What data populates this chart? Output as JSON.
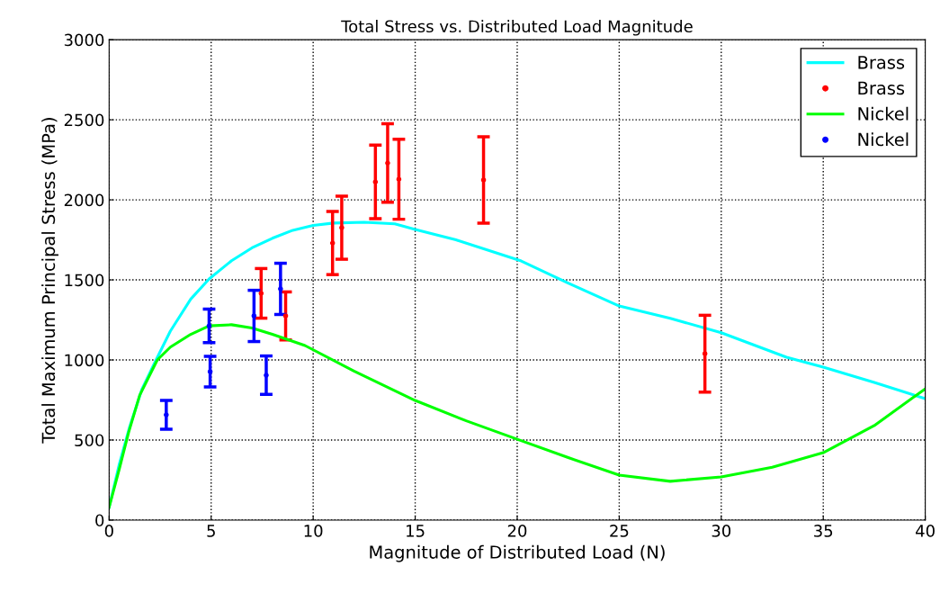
{
  "chart_data": {
    "type": "line",
    "title": "Total Stress vs. Distributed Load Magnitude",
    "xlabel": "Magnitude of Distributed Load (N)",
    "ylabel": "Total Maximum Principal Stress (MPa)",
    "xlim": [
      0,
      40
    ],
    "ylim": [
      0,
      3000
    ],
    "xticks": [
      0,
      5,
      10,
      15,
      20,
      25,
      30,
      35,
      40
    ],
    "yticks": [
      0,
      500,
      1000,
      1500,
      2000,
      2500,
      3000
    ],
    "grid": true,
    "legend": "top right",
    "series": [
      {
        "name": "Brass",
        "color": "#00ffff",
        "marker": "none",
        "x": [
          0,
          0.5,
          1,
          1.6,
          2.3,
          3,
          4,
          4.9,
          6,
          7,
          8,
          9,
          10,
          11,
          12.5,
          14,
          15,
          17,
          20.2,
          22.5,
          25,
          27.5,
          30,
          33.2,
          35,
          37.5,
          40
        ],
        "values": [
          80,
          350,
          580,
          815,
          1000,
          1180,
          1380,
          1506,
          1620,
          1700,
          1760,
          1810,
          1840,
          1855,
          1860,
          1850,
          1815,
          1750,
          1618,
          1480,
          1337,
          1260,
          1170,
          1017,
          955,
          860,
          758
        ]
      },
      {
        "name": "Brass",
        "type": "scatter",
        "color": "#ff0000",
        "marker": "circle",
        "x": [
          7.45,
          8.65,
          10.95,
          11.4,
          13.05,
          13.65,
          14.2,
          18.35,
          29.2
        ],
        "values": [
          1416,
          1275,
          1730,
          1826,
          2112,
          2230,
          2129,
          2124,
          1039
        ],
        "errors": [
          155,
          150,
          197,
          197,
          230,
          245,
          250,
          270,
          240
        ]
      },
      {
        "name": "Nickel",
        "color": "#00ff00",
        "marker": "none",
        "x": [
          0,
          0.5,
          0.96,
          1.5,
          2.36,
          3,
          4,
          4.9,
          6,
          7,
          8,
          9.6,
          12,
          15,
          17.5,
          20,
          22.5,
          25,
          27.5,
          30,
          32.5,
          35,
          37.5,
          40
        ],
        "values": [
          80,
          320,
          550,
          780,
          1000,
          1080,
          1160,
          1213,
          1220,
          1200,
          1160,
          1090,
          930,
          747,
          620,
          505,
          390,
          281,
          242,
          270,
          330,
          421,
          590,
          820
        ]
      },
      {
        "name": "Nickel",
        "type": "scatter",
        "color": "#0000ff",
        "marker": "circle",
        "x": [
          2.8,
          4.9,
          4.95,
          7.1,
          7.7,
          8.4
        ],
        "values": [
          657,
          1213,
          927,
          1275,
          905,
          1444
        ],
        "errors": [
          90,
          105,
          95,
          160,
          120,
          160
        ]
      }
    ]
  }
}
